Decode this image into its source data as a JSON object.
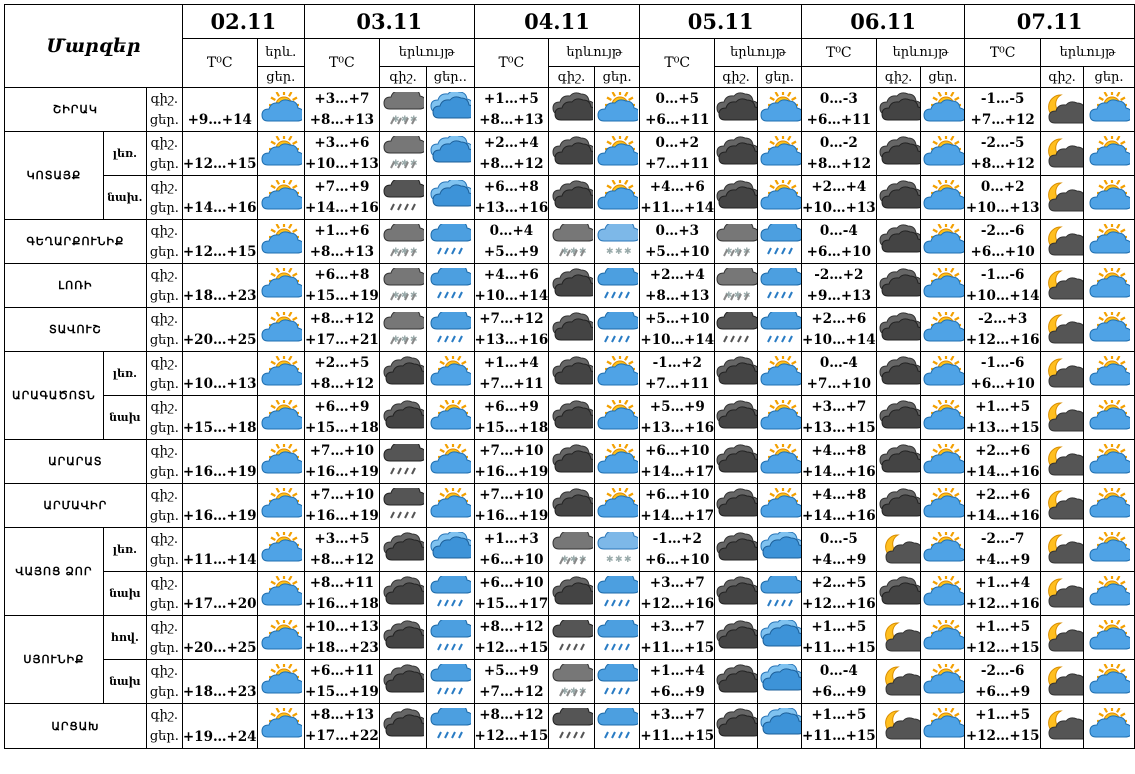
{
  "header": {
    "marzer": "Մարզեր",
    "temp": "T⁰C",
    "yerevuyt": "երևույթ",
    "yerevuyt_short": "երև.",
    "night": "գիշ.",
    "day": "ցեր.",
    "day_trunc": "ցեր..",
    "dates": [
      "02.11",
      "03.11",
      "04.11",
      "05.11",
      "06.11",
      "07.11"
    ]
  },
  "rows": [
    {
      "region": "ՇԻՐԱԿ",
      "sub": "",
      "temps": [
        "+9…+14",
        "+3…+7|+8…+13",
        "+1…+5|+8…+13",
        "0…+5|+6…+11",
        "0…-3|+6…+11",
        "-1…-5|+7…+12"
      ],
      "icons": [
        "sunny-cloud-icon",
        "cloud-rain-snow-icon",
        "cloud-blue-icon",
        "dark-cloud-icon",
        "sunny-cloud-icon",
        "dark-cloud-icon",
        "sunny-cloud-icon",
        "dark-cloud-icon",
        "sunny-cloud-icon",
        "moon-cloud-icon",
        "sunny-cloud-icon"
      ]
    },
    {
      "region": "ԿՈՏԱՅՔ",
      "sub": "լեռ.",
      "temps": [
        "+12…+15",
        "+3…+6|+10…+13",
        "+2…+4|+8…+12",
        "0…+2|+7…+11",
        "0…-2|+8…+12",
        "-2…-5|+8…+12"
      ],
      "icons": [
        "sunny-cloud-icon",
        "cloud-rain-snow-icon",
        "cloud-blue-icon",
        "dark-cloud-icon",
        "sunny-cloud-icon",
        "dark-cloud-icon",
        "sunny-cloud-icon",
        "dark-cloud-icon",
        "sunny-cloud-icon",
        "moon-cloud-icon",
        "sunny-cloud-icon"
      ]
    },
    {
      "region": "",
      "sub": "նախ.",
      "temps": [
        "+14…+16",
        "+7…+9|+14…+16",
        "+6…+8|+13…+16",
        "+4…+6|+11…+14",
        "+2…+4|+10…+13",
        "0…+2|+10…+13"
      ],
      "icons": [
        "sunny-cloud-icon",
        "dark-cloud-rain-icon",
        "cloud-blue-icon",
        "dark-cloud-icon",
        "sunny-cloud-icon",
        "dark-cloud-icon",
        "sunny-cloud-icon",
        "dark-cloud-icon",
        "sunny-cloud-icon",
        "moon-cloud-icon",
        "sunny-cloud-icon"
      ]
    },
    {
      "region": "ԳԵՂԱՐՔՈՒՆԻՔ",
      "sub": "",
      "temps": [
        "+12…+15",
        "+1…+6|+8…+13",
        "0…+4|+5…+9",
        "0…+3|+5…+10",
        "0…-4|+6…+10",
        "-2…-6|+6…+10"
      ],
      "icons": [
        "sunny-cloud-icon",
        "cloud-rain-snow-icon",
        "cloud-blue-rain-icon",
        "cloud-rain-snow-icon",
        "cloud-blue-snow-icon",
        "cloud-rain-snow-icon",
        "cloud-blue-rain-icon",
        "dark-cloud-icon",
        "sunny-cloud-icon",
        "moon-cloud-icon",
        "sunny-cloud-icon"
      ]
    },
    {
      "region": "ԼՈՌԻ",
      "sub": "",
      "temps": [
        "+18…+23",
        "+6…+8|+15…+19",
        "+4…+6|+10…+14",
        "+2…+4|+8…+13",
        "-2…+2|+9…+13",
        "-1…-6|+10…+14"
      ],
      "icons": [
        "sunny-cloud-icon",
        "cloud-rain-snow-icon",
        "cloud-blue-rain-icon",
        "dark-cloud-icon",
        "cloud-blue-rain-icon",
        "cloud-rain-snow-icon",
        "cloud-blue-rain-icon",
        "dark-cloud-icon",
        "sunny-cloud-icon",
        "moon-cloud-icon",
        "sunny-cloud-icon"
      ]
    },
    {
      "region": "ՏԱՎՈՒՇ",
      "sub": "",
      "temps": [
        "+20…+25",
        "+8…+12|+17…+21",
        "+7…+12|+13…+16",
        "+5…+10|+10…+14",
        "+2…+6|+10…+14",
        "-2…+3|+12…+16"
      ],
      "icons": [
        "sunny-cloud-icon",
        "cloud-rain-snow-icon",
        "cloud-blue-rain-icon",
        "dark-cloud-icon",
        "cloud-blue-rain-icon",
        "dark-cloud-rain-icon",
        "cloud-blue-rain-icon",
        "dark-cloud-icon",
        "sunny-cloud-icon",
        "moon-cloud-icon",
        "sunny-cloud-icon"
      ]
    },
    {
      "region": "ԱՐԱԳԱԾՈՏՆ",
      "sub": "լեռ.",
      "temps": [
        "+10…+13",
        "+2…+5|+8…+12",
        "+1…+4|+7…+11",
        "-1…+2|+7…+11",
        "0…-4|+7…+10",
        "-1…-6|+6…+10"
      ],
      "icons": [
        "sunny-cloud-icon",
        "dark-cloud-icon",
        "sunny-cloud-icon",
        "dark-cloud-icon",
        "sunny-cloud-icon",
        "dark-cloud-icon",
        "sunny-cloud-icon",
        "dark-cloud-icon",
        "sunny-cloud-icon",
        "moon-cloud-icon",
        "sunny-cloud-icon"
      ]
    },
    {
      "region": "",
      "sub": "նախ",
      "temps": [
        "+15…+18",
        "+6…+9|+15…+18",
        "+6…+9|+15…+18",
        "+5…+9|+13…+16",
        "+3…+7|+13…+15",
        "+1…+5|+13…+15"
      ],
      "icons": [
        "sunny-cloud-icon",
        "dark-cloud-icon",
        "sunny-cloud-icon",
        "dark-cloud-icon",
        "sunny-cloud-icon",
        "dark-cloud-icon",
        "sunny-cloud-icon",
        "dark-cloud-icon",
        "sunny-cloud-icon",
        "moon-cloud-icon",
        "sunny-cloud-icon"
      ]
    },
    {
      "region": "ԱՐԱՐԱՏ",
      "sub": "",
      "temps": [
        "+16…+19",
        "+7…+10|+16…+19",
        "+7…+10|+16…+19",
        "+6…+10|+14…+17",
        "+4…+8|+14…+16",
        "+2…+6|+14…+16"
      ],
      "icons": [
        "sunny-cloud-icon",
        "dark-cloud-rain-icon",
        "sunny-cloud-icon",
        "dark-cloud-icon",
        "sunny-cloud-icon",
        "dark-cloud-icon",
        "sunny-cloud-icon",
        "dark-cloud-icon",
        "sunny-cloud-icon",
        "moon-cloud-icon",
        "sunny-cloud-icon"
      ]
    },
    {
      "region": "ԱՐՄԱՎԻՐ",
      "sub": "",
      "temps": [
        "+16…+19",
        "+7…+10|+16…+19",
        "+7…+10|+16…+19",
        "+6…+10|+14…+17",
        "+4…+8|+14…+16",
        "+2…+6|+14…+16"
      ],
      "icons": [
        "sunny-cloud-icon",
        "dark-cloud-rain-icon",
        "sunny-cloud-icon",
        "dark-cloud-icon",
        "sunny-cloud-icon",
        "dark-cloud-icon",
        "sunny-cloud-icon",
        "dark-cloud-icon",
        "sunny-cloud-icon",
        "moon-cloud-icon",
        "sunny-cloud-icon"
      ]
    },
    {
      "region": "ՎԱՅՈՑ ՁՈՐ",
      "sub": "լեռ.",
      "temps": [
        "+11…+14",
        "+3…+5|+8…+12",
        "+1…+3|+6…+10",
        "-1…+2|+6…+10",
        "0…-5|+4…+9",
        "-2…-7|+4…+9"
      ],
      "icons": [
        "sunny-cloud-icon",
        "dark-cloud-icon",
        "cloud-blue-icon",
        "cloud-rain-snow-icon",
        "cloud-blue-snow-icon",
        "dark-cloud-icon",
        "cloud-blue-icon",
        "moon-cloud-icon",
        "sunny-cloud-icon",
        "moon-cloud-icon",
        "sunny-cloud-icon"
      ]
    },
    {
      "region": "",
      "sub": "նախ",
      "temps": [
        "+17…+20",
        "+8…+11|+16…+18",
        "+6…+10|+15…+17",
        "+3…+7|+12…+16",
        "+2…+5|+12…+16",
        "+1…+4|+12…+16"
      ],
      "icons": [
        "sunny-cloud-icon",
        "dark-cloud-icon",
        "cloud-blue-rain-icon",
        "dark-cloud-icon",
        "cloud-blue-rain-icon",
        "dark-cloud-icon",
        "cloud-blue-rain-icon",
        "dark-cloud-icon",
        "sunny-cloud-icon",
        "moon-cloud-icon",
        "sunny-cloud-icon"
      ]
    },
    {
      "region": "ՍՅՈՒՆԻՔ",
      "sub": "հով.",
      "temps": [
        "+20…+25",
        "+10…+13|+18…+23",
        "+8…+12|+12…+15",
        "+3…+7|+11…+15",
        "+1…+5|+11…+15",
        "+1…+5|+12…+15"
      ],
      "icons": [
        "sunny-cloud-icon",
        "dark-cloud-icon",
        "cloud-blue-rain-icon",
        "dark-cloud-rain-icon",
        "cloud-blue-rain-icon",
        "dark-cloud-icon",
        "cloud-blue-icon",
        "moon-cloud-icon",
        "sunny-cloud-icon",
        "moon-cloud-icon",
        "sunny-cloud-icon"
      ]
    },
    {
      "region": "",
      "sub": "նախ",
      "temps": [
        "+18…+23",
        "+6…+11|+15…+19",
        "+5…+9|+7…+12",
        "+1…+4|+6…+9",
        "0…-4|+6…+9",
        "-2…-6|+6…+9"
      ],
      "icons": [
        "sunny-cloud-icon",
        "dark-cloud-icon",
        "cloud-blue-rain-icon",
        "cloud-rain-snow-icon",
        "cloud-blue-rain-icon",
        "dark-cloud-icon",
        "cloud-blue-icon",
        "moon-cloud-icon",
        "sunny-cloud-icon",
        "moon-cloud-icon",
        "sunny-cloud-icon"
      ]
    },
    {
      "region": "ԱՐՑԱԽ",
      "sub": "",
      "temps": [
        "+19…+24",
        "+8…+13|+17…+22",
        "+8…+12|+12…+15",
        "+3…+7|+11…+15",
        "+1…+5|+11…+15",
        "+1…+5|+12…+15"
      ],
      "icons": [
        "sunny-cloud-icon",
        "dark-cloud-icon",
        "cloud-blue-rain-icon",
        "dark-cloud-rain-icon",
        "cloud-blue-rain-icon",
        "dark-cloud-icon",
        "cloud-blue-icon",
        "moon-cloud-icon",
        "sunny-cloud-icon",
        "moon-cloud-icon",
        "sunny-cloud-icon"
      ]
    }
  ]
}
